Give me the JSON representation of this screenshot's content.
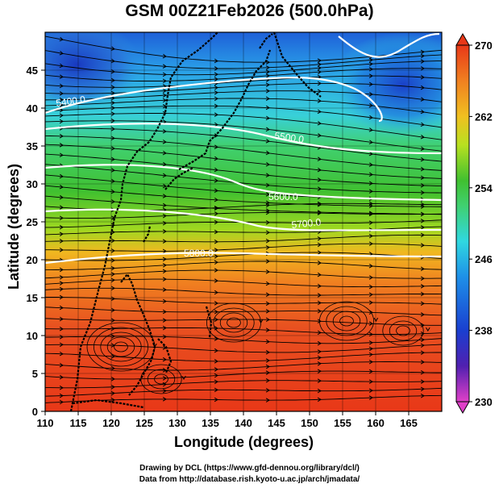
{
  "title": "GSM 00Z21Feb2026 (500.0hPa)",
  "xlabel": "Longitude (degrees)",
  "ylabel": "Latitude  (degrees)",
  "credits": {
    "line1": "Drawing by DCL (https://www.gfd-dennou.org/library/dcl/)",
    "line2": "Data from http://database.rish.kyoto-u.ac.jp/arch/jmadata/"
  },
  "chart_data": {
    "type": "heatmap",
    "variable_description": "500 hPa temperature shading with geopotential height contours and wind streamlines",
    "xlim": [
      110,
      170
    ],
    "ylim": [
      0,
      50
    ],
    "x_ticks": [
      "110",
      "115",
      "120",
      "125",
      "130",
      "135",
      "140",
      "145",
      "150",
      "155",
      "160",
      "165"
    ],
    "y_ticks": [
      "0",
      "5",
      "10",
      "15",
      "20",
      "25",
      "30",
      "35",
      "40",
      "45"
    ],
    "colorbar": {
      "min": 230,
      "max": 270,
      "tick_labels": [
        "270",
        "262",
        "254",
        "246",
        "238",
        "230"
      ],
      "colors": [
        "#e040c8",
        "#5020b0",
        "#1a3fd0",
        "#1e90e8",
        "#30d8e0",
        "#40d070",
        "#40c030",
        "#b8e020",
        "#f0c020",
        "#f08020",
        "#e83818"
      ]
    },
    "contours": [
      {
        "label": "5400.0"
      },
      {
        "label": "5500.0"
      },
      {
        "label": "5600.0"
      },
      {
        "label": "5700.0"
      },
      {
        "label": "5800.0"
      }
    ],
    "coastline_color": "#000000",
    "streamline_color": "#000000"
  }
}
